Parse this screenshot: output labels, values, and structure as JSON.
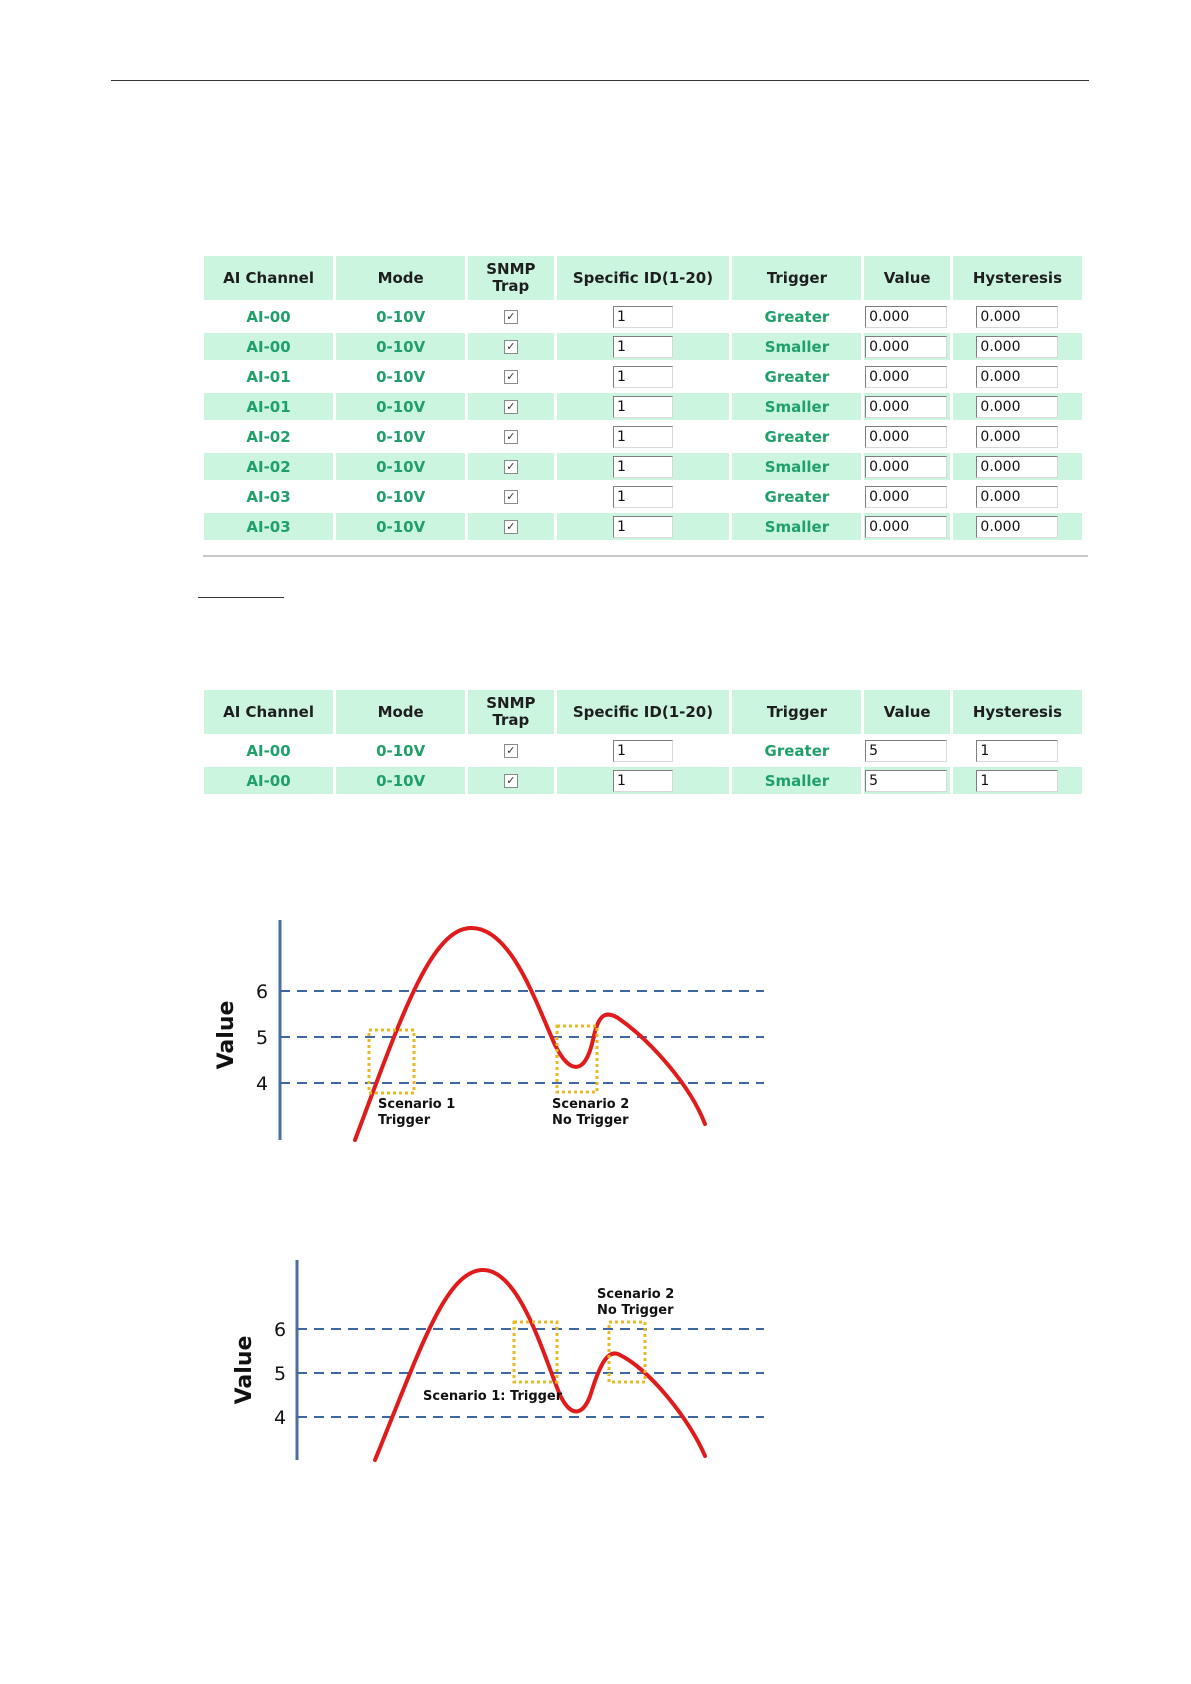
{
  "table_headers": [
    "AI Channel",
    "Mode",
    "SNMP Trap",
    "Specific ID(1-20)",
    "Trigger",
    "Value",
    "Hysteresis"
  ],
  "table1": {
    "rows": [
      {
        "channel": "AI-00",
        "mode": "0-10V",
        "snmp_trap": true,
        "specific_id": "1",
        "trigger": "Greater",
        "value": "0.000",
        "hysteresis": "0.000"
      },
      {
        "channel": "AI-00",
        "mode": "0-10V",
        "snmp_trap": true,
        "specific_id": "1",
        "trigger": "Smaller",
        "value": "0.000",
        "hysteresis": "0.000"
      },
      {
        "channel": "AI-01",
        "mode": "0-10V",
        "snmp_trap": true,
        "specific_id": "1",
        "trigger": "Greater",
        "value": "0.000",
        "hysteresis": "0.000"
      },
      {
        "channel": "AI-01",
        "mode": "0-10V",
        "snmp_trap": true,
        "specific_id": "1",
        "trigger": "Smaller",
        "value": "0.000",
        "hysteresis": "0.000"
      },
      {
        "channel": "AI-02",
        "mode": "0-10V",
        "snmp_trap": true,
        "specific_id": "1",
        "trigger": "Greater",
        "value": "0.000",
        "hysteresis": "0.000"
      },
      {
        "channel": "AI-02",
        "mode": "0-10V",
        "snmp_trap": true,
        "specific_id": "1",
        "trigger": "Smaller",
        "value": "0.000",
        "hysteresis": "0.000"
      },
      {
        "channel": "AI-03",
        "mode": "0-10V",
        "snmp_trap": true,
        "specific_id": "1",
        "trigger": "Greater",
        "value": "0.000",
        "hysteresis": "0.000"
      },
      {
        "channel": "AI-03",
        "mode": "0-10V",
        "snmp_trap": true,
        "specific_id": "1",
        "trigger": "Smaller",
        "value": "0.000",
        "hysteresis": "0.000"
      }
    ]
  },
  "table2": {
    "rows": [
      {
        "channel": "AI-00",
        "mode": "0-10V",
        "snmp_trap": true,
        "specific_id": "1",
        "trigger": "Greater",
        "value": "5",
        "hysteresis": "1"
      },
      {
        "channel": "AI-00",
        "mode": "0-10V",
        "snmp_trap": true,
        "specific_id": "1",
        "trigger": "Smaller",
        "value": "5",
        "hysteresis": "1"
      }
    ]
  },
  "graph1": {
    "y_axis_label": "Value",
    "thresholds": [
      "6",
      "5",
      "4"
    ],
    "scenario1": {
      "line1": "Scenario 1",
      "line2": "Trigger"
    },
    "scenario2": {
      "line1": "Scenario 2",
      "line2": "No Trigger"
    }
  },
  "graph2": {
    "y_axis_label": "Value",
    "thresholds": [
      "6",
      "5",
      "4"
    ],
    "scenario1": {
      "line1": "Scenario 1: Trigger"
    },
    "scenario2": {
      "line1": "Scenario 2",
      "line2": "No Trigger"
    }
  },
  "colors": {
    "header_bg": "#ccf5e0",
    "row_text": "#1f9f6a",
    "axis": "#4a6fa0",
    "threshold_line": "#3d68a3",
    "curve": "#e01b1b",
    "scenario_box": "#e8b820"
  }
}
